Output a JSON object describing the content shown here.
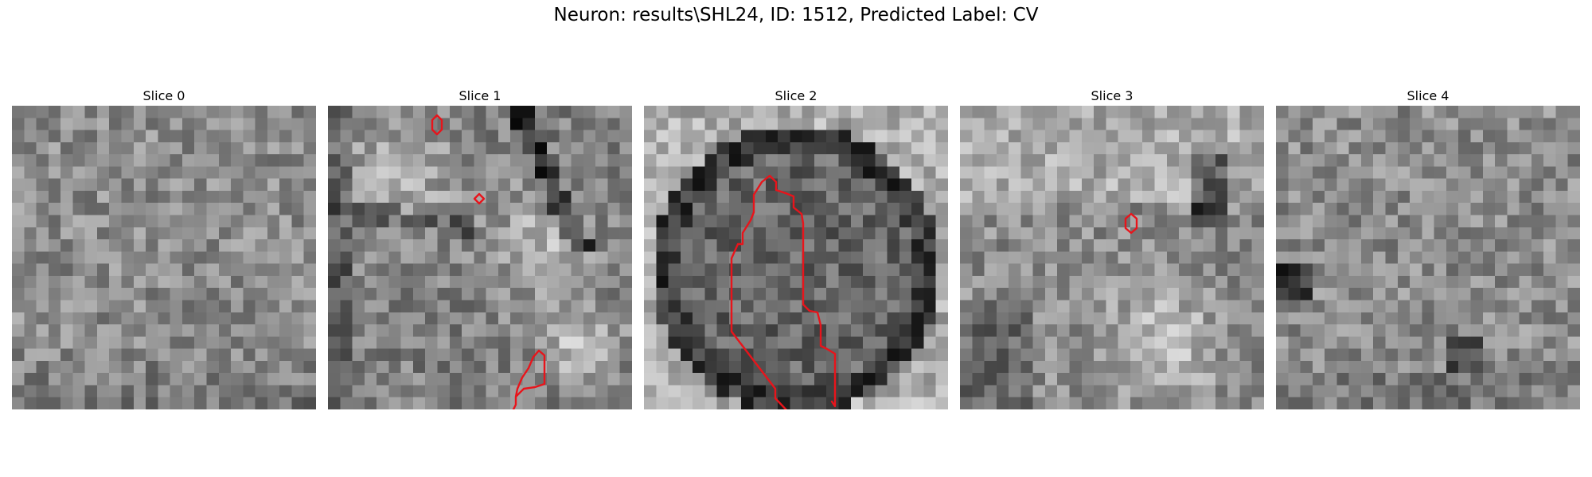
{
  "figure": {
    "suptitle": "Neuron: results\\SHL24, ID: 1512, Predicted Label: CV",
    "contour_color": "#e8141b",
    "colormap": "gray",
    "slices": [
      {
        "title": "Slice 0",
        "image_alt": "grayscale microscopy noise patch, no contours"
      },
      {
        "title": "Slice 1",
        "image_alt": "grayscale patch with bright blob and dark membranes, three small red contours"
      },
      {
        "title": "Slice 2",
        "image_alt": "grayscale patch with round cell body and a long red contour"
      },
      {
        "title": "Slice 3",
        "image_alt": "grayscale patch with one small red contour"
      },
      {
        "title": "Slice 4",
        "image_alt": "grayscale noise patch, no contours"
      }
    ]
  }
}
